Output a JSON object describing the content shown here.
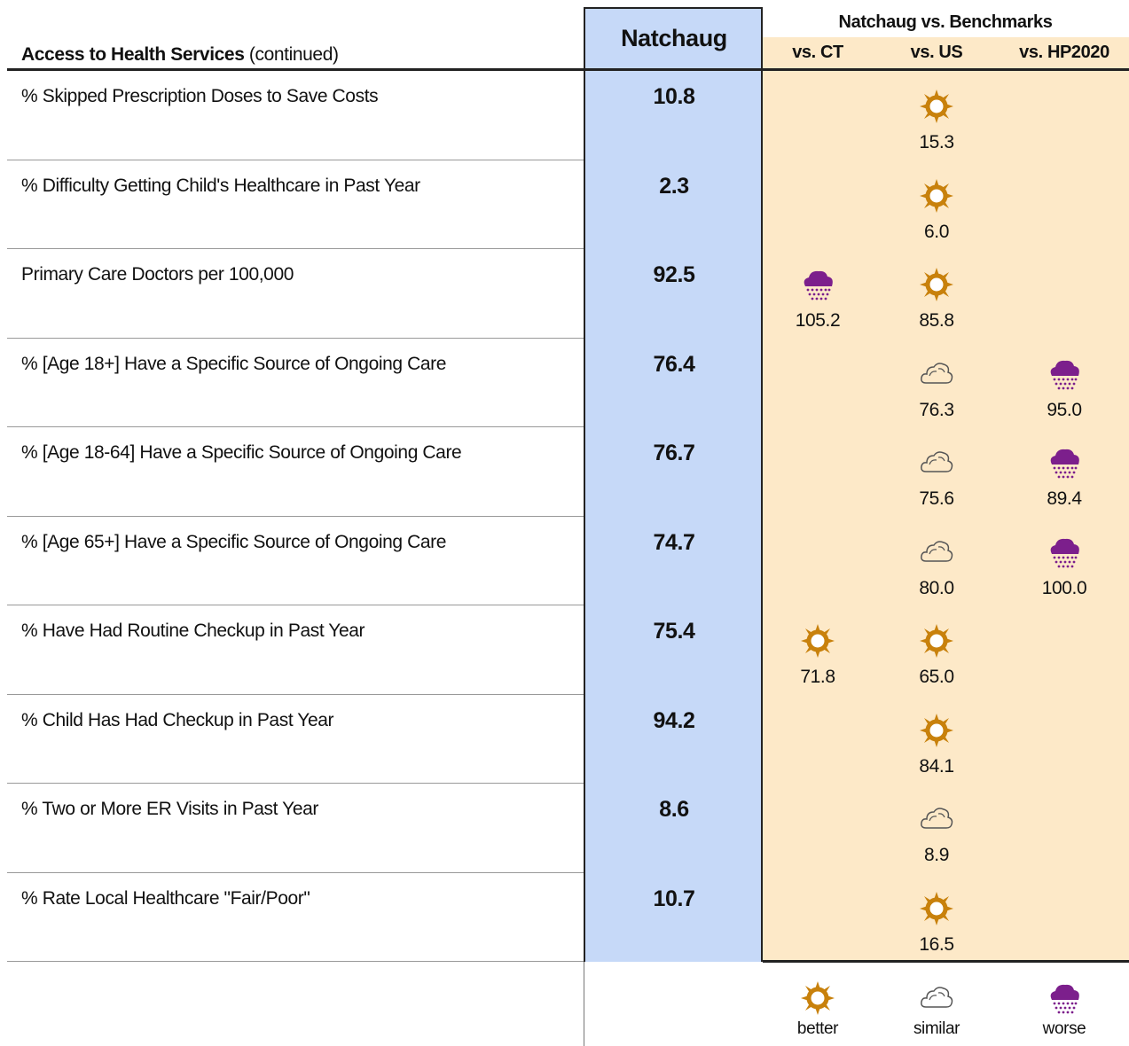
{
  "header": {
    "title": "Access to Health Services",
    "title_note": "(continued)",
    "area_column": "Natchaug",
    "benchmark_title": "Natchaug vs. Benchmarks",
    "benchmark_columns": [
      "vs. CT",
      "vs. US",
      "vs. HP2020"
    ]
  },
  "legend": [
    "better",
    "similar",
    "worse"
  ],
  "rows": [
    {
      "label": "% Skipped Prescription Doses to Save Costs",
      "value": "10.8",
      "benchmarks": [
        null,
        {
          "rating": "better",
          "value": "15.3"
        },
        null
      ]
    },
    {
      "label": "% Difficulty Getting Child's Healthcare in Past Year",
      "value": "2.3",
      "benchmarks": [
        null,
        {
          "rating": "better",
          "value": "6.0"
        },
        null
      ]
    },
    {
      "label": "Primary Care Doctors per 100,000",
      "value": "92.5",
      "benchmarks": [
        {
          "rating": "worse",
          "value": "105.2"
        },
        {
          "rating": "better",
          "value": "85.8"
        },
        null
      ]
    },
    {
      "label": "% [Age 18+] Have a Specific Source of Ongoing Care",
      "value": "76.4",
      "benchmarks": [
        null,
        {
          "rating": "similar",
          "value": "76.3"
        },
        {
          "rating": "worse",
          "value": "95.0"
        }
      ]
    },
    {
      "label": "% [Age 18-64] Have a Specific Source of Ongoing Care",
      "value": "76.7",
      "benchmarks": [
        null,
        {
          "rating": "similar",
          "value": "75.6"
        },
        {
          "rating": "worse",
          "value": "89.4"
        }
      ]
    },
    {
      "label": "% [Age 65+] Have a Specific Source of Ongoing Care",
      "value": "74.7",
      "benchmarks": [
        null,
        {
          "rating": "similar",
          "value": "80.0"
        },
        {
          "rating": "worse",
          "value": "100.0"
        }
      ]
    },
    {
      "label": "% Have Had Routine Checkup in Past Year",
      "value": "75.4",
      "benchmarks": [
        {
          "rating": "better",
          "value": "71.8"
        },
        {
          "rating": "better",
          "value": "65.0"
        },
        null
      ]
    },
    {
      "label": "% Child Has Had Checkup in Past Year",
      "value": "94.2",
      "benchmarks": [
        null,
        {
          "rating": "better",
          "value": "84.1"
        },
        null
      ]
    },
    {
      "label": "% Two or More ER Visits in Past Year",
      "value": "8.6",
      "benchmarks": [
        null,
        {
          "rating": "similar",
          "value": "8.9"
        },
        null
      ]
    },
    {
      "label": "% Rate Local Healthcare \"Fair/Poor\"",
      "value": "10.7",
      "benchmarks": [
        null,
        {
          "rating": "better",
          "value": "16.5"
        },
        null
      ]
    }
  ]
}
